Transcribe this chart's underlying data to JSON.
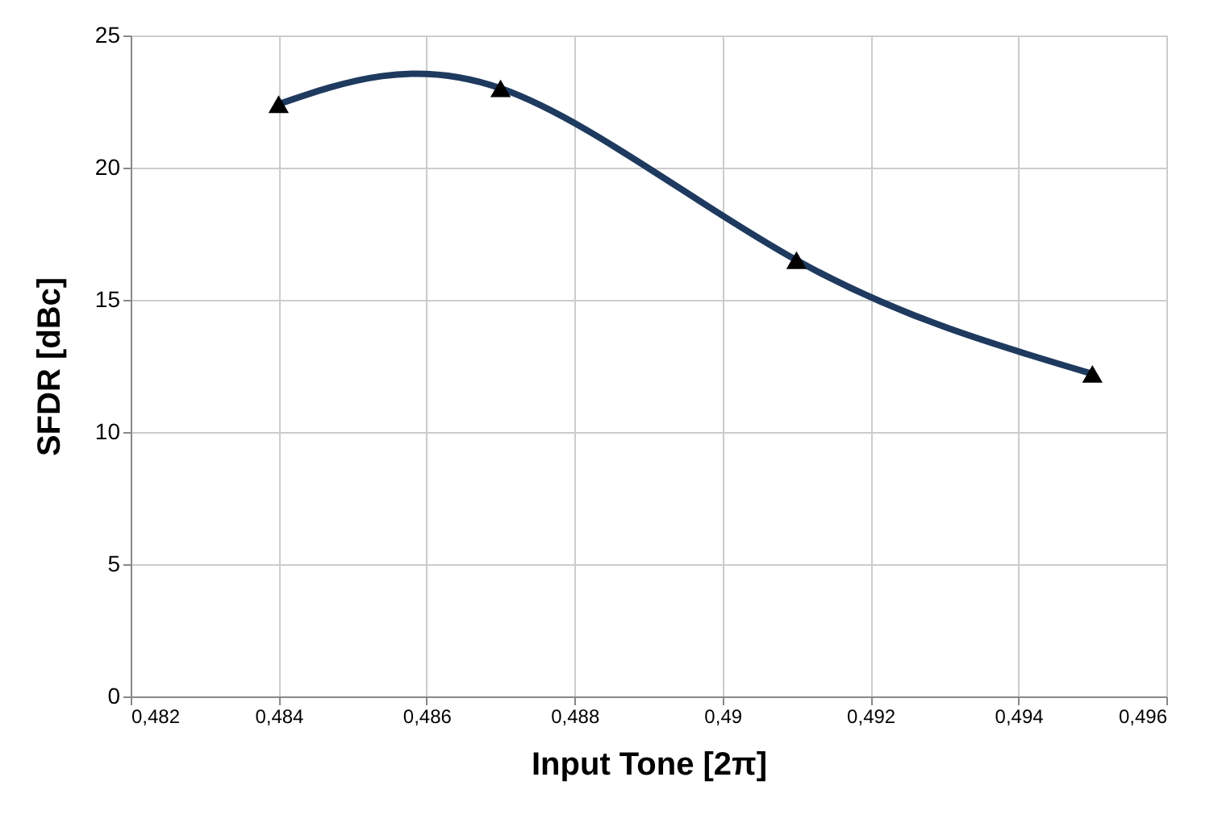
{
  "chart_data": {
    "type": "line",
    "xlabel": "Input Tone [2π]",
    "ylabel": "SFDR [dBc]",
    "x": [
      0.484,
      0.487,
      0.491,
      0.495
    ],
    "series": [
      {
        "color": "#1f3a5f",
        "values": [
          22.4,
          23.0,
          16.5,
          12.2
        ]
      }
    ],
    "xlim": [
      0.482,
      0.496
    ],
    "xticks": [
      {
        "value": 0.482,
        "label": "0,482"
      },
      {
        "value": 0.484,
        "label": "0,484"
      },
      {
        "value": 0.486,
        "label": "0,486"
      },
      {
        "value": 0.488,
        "label": "0,488"
      },
      {
        "value": 0.49,
        "label": "0,49"
      },
      {
        "value": 0.492,
        "label": "0,492"
      },
      {
        "value": 0.494,
        "label": "0,494"
      },
      {
        "value": 0.496,
        "label": "0,496"
      }
    ],
    "ylim": [
      0,
      25
    ],
    "yticks": [
      0,
      5,
      10,
      15,
      20,
      25
    ],
    "grid": true,
    "marker": "triangle",
    "line_style": "solid"
  }
}
